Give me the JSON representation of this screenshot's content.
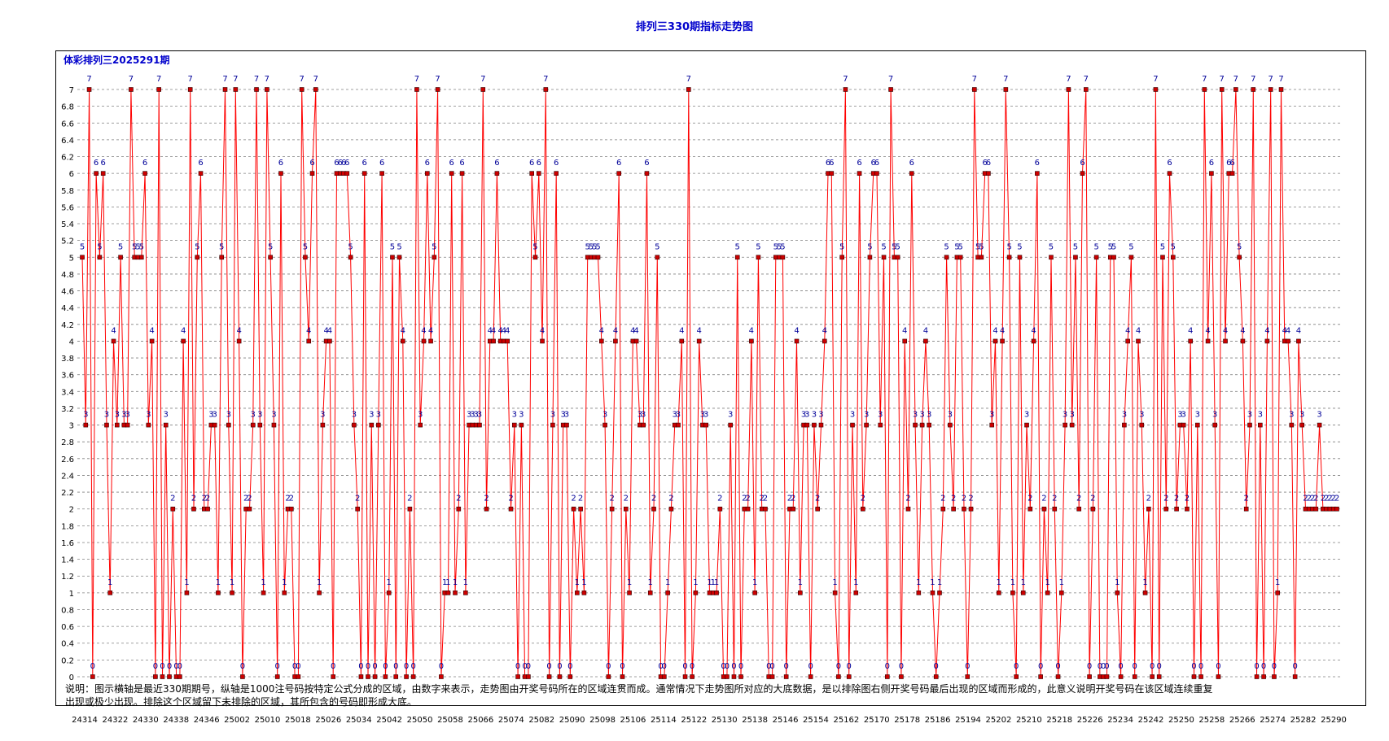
{
  "page_title": "排列三330期指标走势图",
  "subtitle": "体彩排列三2025291期",
  "note": "说明：图示横轴是最近330期期号，纵轴是1000注号码按特定公式分成的区域，由数字来表示，走势图由开奖号码所在的区域连贯而成。通常情况下走势图所对应的大底数据，是以排除图右侧开奖号码最后出现的区域而形成的，此意义说明开奖号码在该区域连续重复出现或极少出现。排除这个区域留下未排除的区域，其所包含的号码即形成大底。",
  "colors": {
    "line": "#ff0000",
    "marker_fill": "#cc0000",
    "label": "#000099",
    "title": "#0000cc",
    "grid": "#808080"
  },
  "chart_data": {
    "type": "line",
    "title": "排列三330期指标走势图",
    "ylim": [
      0,
      7
    ],
    "yticks": [
      "0",
      "0.2",
      "0.4",
      "0.6",
      "0.8",
      "1",
      "1.2",
      "1.4",
      "1.6",
      "1.8",
      "2",
      "2.2",
      "2.4",
      "2.6",
      "2.8",
      "3",
      "3.2",
      "3.4",
      "3.6",
      "3.8",
      "4",
      "4.2",
      "4.4",
      "4.6",
      "4.8",
      "5",
      "5.2",
      "5.4",
      "5.6",
      "5.8",
      "6",
      "6.2",
      "6.4",
      "6.6",
      "6.8",
      "7"
    ],
    "xticks": [
      "24314",
      "24322",
      "24330",
      "24338",
      "24346",
      "25002",
      "25010",
      "25018",
      "25026",
      "25034",
      "25042",
      "25050",
      "25058",
      "25066",
      "25074",
      "25082",
      "25090",
      "25098",
      "25106",
      "25114",
      "25122",
      "25130",
      "25138",
      "25146",
      "25154",
      "25162",
      "25170",
      "25178",
      "25186",
      "25194",
      "25202",
      "25210",
      "25218",
      "25226",
      "25234",
      "25242",
      "25250",
      "25258",
      "25266",
      "25274",
      "25282",
      "25290"
    ],
    "grid": true,
    "series": [
      {
        "name": "区域",
        "values": [
          5,
          3,
          7,
          0,
          6,
          5,
          6,
          3,
          1,
          4,
          3,
          5,
          3,
          3,
          7,
          5,
          5,
          5,
          6,
          3,
          4,
          0,
          7,
          0,
          3,
          0,
          2,
          0,
          0,
          4,
          1,
          7,
          2,
          5,
          6,
          2,
          2,
          3,
          3,
          1,
          5,
          7,
          3,
          1,
          7,
          4,
          0,
          2,
          2,
          3,
          7,
          3,
          1,
          7,
          5,
          3,
          0,
          6,
          1,
          2,
          2,
          0,
          0,
          7,
          5,
          4,
          6,
          7,
          1,
          3,
          4,
          4,
          0,
          6,
          6,
          6,
          6,
          5,
          3,
          2,
          0,
          6,
          0,
          3,
          0,
          3,
          6,
          0,
          1,
          5,
          0,
          5,
          4,
          0,
          2,
          0,
          7,
          3,
          4,
          6,
          4,
          5,
          7,
          0,
          1,
          1,
          6,
          1,
          2,
          6,
          1,
          3,
          3,
          3,
          3,
          7,
          2,
          4,
          4,
          6,
          4,
          4,
          4,
          2,
          3,
          0,
          3,
          0,
          0,
          6,
          5,
          6,
          4,
          7,
          0,
          3,
          6,
          0,
          3,
          3,
          0,
          2,
          1,
          2,
          1,
          5,
          5,
          5,
          5,
          4,
          3,
          0,
          2,
          4,
          6,
          0,
          2,
          1,
          4,
          4,
          3,
          3,
          6,
          1,
          2,
          5,
          0,
          0,
          1,
          2,
          3,
          3,
          4,
          0,
          7,
          0,
          1,
          4,
          3,
          3,
          1,
          1,
          1,
          2,
          0,
          0,
          3,
          0,
          5,
          0,
          2,
          2,
          4,
          1,
          5,
          2,
          2,
          0,
          0,
          5,
          5,
          5,
          0,
          2,
          2,
          4,
          1,
          3,
          3,
          0,
          3,
          2,
          3,
          4,
          6,
          6,
          1,
          0,
          5,
          7,
          0,
          3,
          1,
          6,
          2,
          3,
          5,
          6,
          6,
          3,
          5,
          0,
          7,
          5,
          5,
          0,
          4,
          2,
          6,
          3,
          1,
          3,
          4,
          3,
          1,
          0,
          1,
          2,
          5,
          3,
          2,
          5,
          5,
          2,
          0,
          2,
          7,
          5,
          5,
          6,
          6,
          3,
          4,
          1,
          4,
          7,
          5,
          1,
          0,
          5,
          1,
          3,
          2,
          4,
          6,
          0,
          2,
          1,
          5,
          2,
          0,
          1,
          3,
          7,
          3,
          5,
          2,
          6,
          7,
          0,
          2,
          5,
          0,
          0,
          0,
          5,
          5,
          1,
          0,
          3,
          4,
          5,
          0,
          4,
          3,
          1,
          2,
          0,
          7,
          0,
          5,
          2,
          6,
          5,
          2,
          3,
          3,
          2,
          4,
          0,
          3,
          0,
          7,
          4,
          6,
          3,
          0,
          7,
          4,
          6,
          6,
          7,
          5,
          4,
          2,
          3,
          7,
          0,
          3,
          0,
          4,
          7,
          0,
          1,
          7,
          4,
          4,
          3,
          0,
          4,
          3,
          2,
          2,
          2,
          2,
          3,
          2,
          2,
          2,
          2,
          2
        ]
      }
    ]
  }
}
